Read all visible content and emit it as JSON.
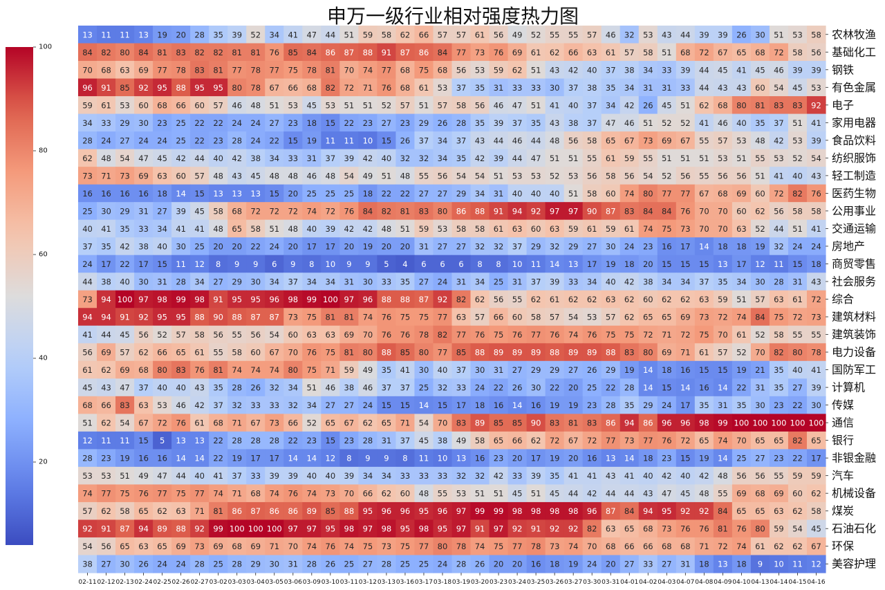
{
  "chart_data": {
    "type": "heatmap",
    "title": "申万一级行业相对强度热力图",
    "x": [
      "02-11",
      "02-12",
      "02-13",
      "02-24",
      "02-25",
      "02-26",
      "02-27",
      "03-02",
      "03-03",
      "03-04",
      "03-05",
      "03-06",
      "03-09",
      "03-10",
      "03-11",
      "03-12",
      "03-13",
      "03-16",
      "03-17",
      "03-18",
      "03-19",
      "03-20",
      "03-23",
      "03-24",
      "03-25",
      "03-26",
      "03-27",
      "03-30",
      "03-31",
      "04-01",
      "04-02",
      "04-03",
      "04-07",
      "04-08",
      "04-09",
      "04-10",
      "04-13",
      "04-14",
      "04-15",
      "04-16"
    ],
    "y": [
      "农林牧渔",
      "基础化工",
      "钢铁",
      "有色金属",
      "电子",
      "家用电器",
      "食品饮料",
      "纺织服饰",
      "轻工制造",
      "医药生物",
      "公用事业",
      "交通运输",
      "房地产",
      "商贸零售",
      "社会服务",
      "综合",
      "建筑材料",
      "建筑装饰",
      "电力设备",
      "国防军工",
      "计算机",
      "传媒",
      "通信",
      "银行",
      "非银金融",
      "汽车",
      "机械设备",
      "煤炭",
      "石油石化",
      "环保",
      "美容护理"
    ],
    "values": [
      [
        13,
        11,
        11,
        13,
        19,
        20,
        28,
        35,
        39,
        52,
        34,
        41,
        47,
        44,
        51,
        59,
        58,
        62,
        66,
        57,
        57,
        61,
        56,
        49,
        52,
        55,
        55,
        57,
        46,
        32,
        53,
        43,
        44,
        39,
        39,
        26,
        30,
        51,
        53,
        58
      ],
      [
        84,
        82,
        80,
        84,
        81,
        83,
        82,
        82,
        81,
        81,
        76,
        85,
        84,
        86,
        87,
        88,
        91,
        87,
        86,
        84,
        77,
        73,
        76,
        69,
        61,
        62,
        66,
        63,
        61,
        57,
        58,
        51,
        68,
        72,
        67,
        65,
        68,
        72,
        58,
        56
      ],
      [
        70,
        68,
        63,
        69,
        77,
        78,
        83,
        81,
        77,
        78,
        77,
        75,
        78,
        81,
        70,
        74,
        77,
        68,
        75,
        68,
        56,
        53,
        59,
        62,
        51,
        43,
        42,
        40,
        37,
        38,
        34,
        33,
        39,
        44,
        45,
        41,
        45,
        46,
        39,
        39
      ],
      [
        96,
        91,
        85,
        92,
        95,
        88,
        95,
        95,
        80,
        78,
        67,
        66,
        68,
        82,
        72,
        71,
        76,
        68,
        61,
        53,
        37,
        35,
        31,
        33,
        33,
        30,
        37,
        38,
        35,
        34,
        31,
        31,
        33,
        44,
        43,
        43,
        60,
        54,
        45,
        53
      ],
      [
        59,
        61,
        53,
        60,
        68,
        66,
        60,
        57,
        46,
        48,
        51,
        53,
        45,
        53,
        51,
        51,
        52,
        57,
        51,
        57,
        58,
        56,
        46,
        47,
        51,
        41,
        40,
        37,
        34,
        42,
        26,
        45,
        51,
        62,
        68,
        80,
        81,
        83,
        83,
        92
      ],
      [
        34,
        33,
        29,
        30,
        23,
        25,
        22,
        22,
        24,
        24,
        27,
        23,
        18,
        15,
        22,
        23,
        27,
        23,
        29,
        26,
        28,
        35,
        39,
        37,
        35,
        43,
        38,
        37,
        47,
        46,
        51,
        52,
        52,
        41,
        46,
        40,
        35,
        37,
        51,
        41
      ],
      [
        28,
        24,
        27,
        24,
        24,
        25,
        22,
        23,
        28,
        24,
        22,
        15,
        19,
        11,
        11,
        10,
        15,
        26,
        37,
        34,
        37,
        43,
        44,
        46,
        44,
        48,
        56,
        58,
        65,
        67,
        73,
        69,
        67,
        55,
        57,
        53,
        48,
        42,
        53,
        39
      ],
      [
        62,
        48,
        54,
        47,
        45,
        42,
        44,
        40,
        42,
        38,
        34,
        33,
        31,
        37,
        39,
        42,
        40,
        32,
        32,
        34,
        35,
        42,
        39,
        44,
        47,
        51,
        51,
        55,
        61,
        59,
        55,
        51,
        51,
        51,
        53,
        51,
        55,
        53,
        52,
        54
      ],
      [
        73,
        71,
        73,
        69,
        63,
        60,
        57,
        48,
        43,
        45,
        48,
        48,
        46,
        48,
        54,
        49,
        51,
        48,
        55,
        56,
        54,
        54,
        51,
        53,
        53,
        52,
        53,
        56,
        58,
        56,
        54,
        52,
        56,
        55,
        56,
        56,
        51,
        41,
        40,
        43
      ],
      [
        16,
        16,
        16,
        16,
        18,
        14,
        15,
        13,
        13,
        13,
        15,
        20,
        25,
        25,
        25,
        18,
        22,
        22,
        27,
        27,
        29,
        34,
        31,
        40,
        40,
        40,
        51,
        58,
        60,
        74,
        80,
        77,
        77,
        67,
        68,
        69,
        60,
        72,
        82,
        76
      ],
      [
        25,
        30,
        29,
        31,
        27,
        39,
        45,
        58,
        68,
        72,
        72,
        72,
        74,
        72,
        76,
        84,
        82,
        81,
        83,
        80,
        86,
        88,
        91,
        94,
        92,
        97,
        97,
        90,
        87,
        83,
        84,
        84,
        76,
        70,
        70,
        60,
        62,
        56,
        58,
        58
      ],
      [
        40,
        41,
        35,
        33,
        34,
        41,
        41,
        48,
        65,
        58,
        51,
        48,
        40,
        39,
        42,
        42,
        48,
        51,
        59,
        53,
        58,
        58,
        61,
        63,
        60,
        63,
        59,
        61,
        59,
        61,
        74,
        75,
        73,
        70,
        70,
        63,
        52,
        44,
        51,
        41
      ],
      [
        37,
        35,
        42,
        38,
        40,
        30,
        25,
        20,
        20,
        22,
        24,
        20,
        17,
        17,
        20,
        19,
        20,
        20,
        31,
        27,
        27,
        32,
        32,
        37,
        29,
        32,
        29,
        27,
        30,
        24,
        23,
        16,
        17,
        14,
        18,
        18,
        19,
        32,
        24,
        24
      ],
      [
        24,
        17,
        22,
        17,
        15,
        11,
        12,
        8,
        9,
        9,
        6,
        9,
        8,
        10,
        9,
        9,
        5,
        4,
        6,
        6,
        6,
        8,
        8,
        10,
        11,
        14,
        13,
        17,
        19,
        18,
        20,
        15,
        15,
        15,
        13,
        17,
        12,
        11,
        15,
        18
      ],
      [
        44,
        38,
        40,
        30,
        31,
        28,
        34,
        27,
        29,
        30,
        34,
        37,
        34,
        34,
        31,
        30,
        33,
        35,
        27,
        24,
        31,
        34,
        25,
        31,
        37,
        39,
        33,
        34,
        40,
        42,
        38,
        34,
        34,
        37,
        35,
        34,
        30,
        28,
        31,
        43
      ],
      [
        73,
        94,
        100,
        97,
        98,
        99,
        98,
        91,
        95,
        95,
        96,
        98,
        99,
        100,
        97,
        96,
        88,
        88,
        87,
        92,
        82,
        62,
        56,
        55,
        62,
        61,
        62,
        62,
        63,
        62,
        60,
        62,
        62,
        63,
        59,
        51,
        57,
        63,
        61,
        72
      ],
      [
        94,
        94,
        91,
        92,
        95,
        95,
        88,
        90,
        88,
        87,
        87,
        73,
        75,
        81,
        81,
        74,
        76,
        75,
        75,
        77,
        63,
        57,
        66,
        60,
        58,
        57,
        54,
        53,
        57,
        62,
        65,
        65,
        69,
        73,
        72,
        74,
        84,
        75,
        72,
        73
      ],
      [
        41,
        44,
        45,
        56,
        52,
        57,
        58,
        56,
        55,
        56,
        54,
        60,
        63,
        63,
        69,
        70,
        76,
        76,
        78,
        82,
        77,
        76,
        75,
        76,
        77,
        76,
        74,
        76,
        75,
        75,
        72,
        71,
        72,
        75,
        70,
        61,
        52,
        58,
        55,
        55
      ],
      [
        56,
        69,
        57,
        62,
        66,
        65,
        61,
        55,
        58,
        60,
        67,
        70,
        76,
        75,
        81,
        80,
        88,
        85,
        80,
        77,
        85,
        88,
        89,
        89,
        89,
        88,
        89,
        89,
        88,
        83,
        80,
        69,
        71,
        61,
        57,
        52,
        70,
        82,
        80,
        78
      ],
      [
        61,
        62,
        69,
        68,
        80,
        83,
        76,
        81,
        74,
        74,
        74,
        80,
        75,
        71,
        59,
        49,
        35,
        41,
        30,
        40,
        37,
        30,
        31,
        27,
        29,
        29,
        27,
        26,
        29,
        19,
        14,
        18,
        16,
        15,
        15,
        19,
        21,
        35,
        40,
        41
      ],
      [
        45,
        43,
        47,
        37,
        40,
        40,
        43,
        35,
        28,
        26,
        32,
        34,
        51,
        46,
        38,
        46,
        37,
        37,
        25,
        32,
        33,
        24,
        22,
        26,
        30,
        22,
        20,
        25,
        22,
        28,
        14,
        15,
        14,
        16,
        14,
        22,
        31,
        35,
        27,
        39
      ],
      [
        68,
        66,
        83,
        63,
        53,
        46,
        42,
        37,
        32,
        33,
        33,
        32,
        34,
        27,
        27,
        24,
        15,
        15,
        14,
        15,
        17,
        18,
        16,
        14,
        16,
        19,
        19,
        23,
        28,
        35,
        29,
        24,
        17,
        35,
        31,
        35,
        30,
        23,
        22,
        30
      ],
      [
        51,
        62,
        54,
        67,
        72,
        76,
        61,
        68,
        71,
        67,
        73,
        66,
        52,
        65,
        67,
        62,
        65,
        71,
        54,
        70,
        83,
        89,
        85,
        85,
        90,
        83,
        81,
        83,
        86,
        94,
        86,
        96,
        96,
        98,
        99,
        100,
        100,
        100,
        100,
        100
      ],
      [
        12,
        11,
        11,
        15,
        5,
        13,
        13,
        22,
        28,
        28,
        28,
        22,
        23,
        15,
        23,
        28,
        31,
        37,
        45,
        38,
        49,
        58,
        65,
        66,
        62,
        72,
        67,
        72,
        77,
        73,
        77,
        76,
        72,
        65,
        74,
        70,
        65,
        65,
        82,
        65
      ],
      [
        28,
        23,
        19,
        16,
        16,
        14,
        14,
        22,
        19,
        17,
        17,
        14,
        14,
        12,
        8,
        9,
        9,
        8,
        11,
        10,
        13,
        16,
        23,
        20,
        17,
        19,
        20,
        16,
        13,
        14,
        18,
        23,
        15,
        19,
        14,
        25,
        27,
        23,
        22,
        17
      ],
      [
        53,
        53,
        51,
        49,
        47,
        44,
        40,
        41,
        37,
        33,
        39,
        39,
        40,
        40,
        39,
        34,
        34,
        33,
        33,
        33,
        32,
        32,
        42,
        33,
        39,
        35,
        41,
        41,
        43,
        41,
        40,
        42,
        40,
        42,
        48,
        56,
        56,
        55,
        59,
        59
      ],
      [
        74,
        77,
        75,
        76,
        77,
        75,
        77,
        74,
        71,
        68,
        74,
        76,
        74,
        73,
        70,
        66,
        62,
        60,
        48,
        55,
        53,
        51,
        51,
        45,
        51,
        45,
        44,
        42,
        44,
        44,
        43,
        47,
        45,
        48,
        55,
        69,
        68,
        69,
        60,
        62
      ],
      [
        57,
        62,
        58,
        65,
        62,
        63,
        71,
        81,
        86,
        87,
        86,
        86,
        89,
        85,
        88,
        95,
        96,
        96,
        95,
        96,
        97,
        99,
        99,
        98,
        98,
        98,
        98,
        96,
        87,
        84,
        94,
        95,
        92,
        92,
        84,
        65,
        65,
        63,
        62,
        58
      ],
      [
        92,
        91,
        87,
        94,
        89,
        88,
        92,
        99,
        100,
        100,
        100,
        97,
        97,
        95,
        98,
        97,
        98,
        95,
        98,
        95,
        97,
        91,
        97,
        92,
        91,
        92,
        92,
        82,
        63,
        65,
        68,
        73,
        76,
        76,
        81,
        76,
        80,
        59,
        54,
        45
      ],
      [
        54,
        56,
        65,
        63,
        65,
        69,
        73,
        69,
        68,
        69,
        71,
        70,
        74,
        76,
        74,
        75,
        73,
        75,
        77,
        80,
        78,
        74,
        75,
        77,
        78,
        73,
        74,
        70,
        68,
        66,
        66,
        68,
        68,
        71,
        72,
        74,
        61,
        62,
        62,
        67
      ],
      [
        38,
        27,
        30,
        26,
        24,
        24,
        28,
        25,
        28,
        29,
        30,
        31,
        28,
        26,
        25,
        27,
        28,
        25,
        25,
        24,
        28,
        26,
        20,
        20,
        16,
        18,
        19,
        24,
        20,
        27,
        33,
        27,
        31,
        18,
        13,
        18,
        9,
        10,
        11,
        12
      ]
    ],
    "colorbar": {
      "min": 0,
      "max": 100,
      "ticks": [
        20,
        40,
        60,
        80,
        100
      ],
      "colormap": "coolwarm"
    },
    "annotations": "cell values shown"
  }
}
